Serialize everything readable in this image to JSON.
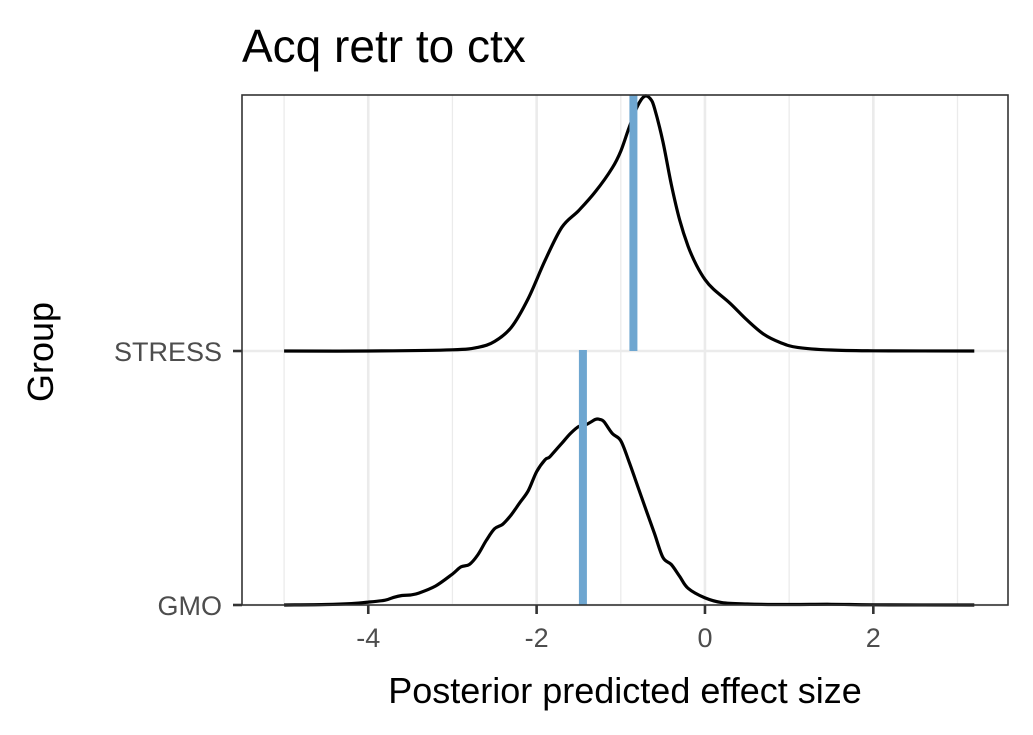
{
  "chart_data": {
    "type": "ridgeline",
    "title": "Acq retr to ctx",
    "xlabel": "Posterior predicted effect size",
    "ylabel": "Group",
    "xlim": [
      -5.5,
      3.6
    ],
    "x_ticks": [
      -4,
      -2,
      0,
      2
    ],
    "x_tick_labels": [
      "-4",
      "-2",
      "0",
      "2"
    ],
    "grid": true,
    "marker_color": "#6ea6d0",
    "line_color": "#000000",
    "groups": [
      {
        "name": "GMO",
        "marker_value": -1.45,
        "density": {
          "x": [
            -5.0,
            -4.5,
            -4.2,
            -4.0,
            -3.8,
            -3.7,
            -3.6,
            -3.5,
            -3.4,
            -3.2,
            -3.0,
            -2.9,
            -2.8,
            -2.7,
            -2.6,
            -2.5,
            -2.4,
            -2.3,
            -2.2,
            -2.1,
            -2.0,
            -1.9,
            -1.85,
            -1.8,
            -1.7,
            -1.6,
            -1.5,
            -1.4,
            -1.3,
            -1.25,
            -1.2,
            -1.1,
            -1.0,
            -0.9,
            -0.8,
            -0.7,
            -0.6,
            -0.5,
            -0.4,
            -0.3,
            -0.2,
            0.0,
            0.2,
            0.5,
            1.0,
            1.5,
            2.0,
            3.2
          ],
          "y": [
            0.0,
            0.002,
            0.006,
            0.012,
            0.02,
            0.032,
            0.04,
            0.042,
            0.05,
            0.08,
            0.13,
            0.16,
            0.17,
            0.21,
            0.27,
            0.32,
            0.34,
            0.38,
            0.43,
            0.48,
            0.56,
            0.61,
            0.62,
            0.64,
            0.68,
            0.72,
            0.75,
            0.76,
            0.78,
            0.78,
            0.77,
            0.72,
            0.69,
            0.6,
            0.5,
            0.4,
            0.3,
            0.2,
            0.17,
            0.12,
            0.07,
            0.03,
            0.01,
            0.004,
            0.002,
            0.003,
            0.001,
            0.0
          ]
        }
      },
      {
        "name": "STRESS",
        "marker_value": -0.85,
        "density": {
          "x": [
            -5.0,
            -4.0,
            -3.0,
            -2.7,
            -2.5,
            -2.3,
            -2.1,
            -1.9,
            -1.7,
            -1.5,
            -1.3,
            -1.1,
            -1.0,
            -0.9,
            -0.8,
            -0.72,
            -0.65,
            -0.6,
            -0.5,
            -0.4,
            -0.3,
            -0.2,
            -0.1,
            0.0,
            0.1,
            0.3,
            0.5,
            0.7,
            0.9,
            1.1,
            1.5,
            2.0,
            3.2
          ],
          "y": [
            0.0,
            0.0,
            0.005,
            0.015,
            0.04,
            0.1,
            0.22,
            0.38,
            0.52,
            0.59,
            0.67,
            0.77,
            0.84,
            0.94,
            1.03,
            1.07,
            1.06,
            1.02,
            0.88,
            0.7,
            0.55,
            0.44,
            0.36,
            0.3,
            0.26,
            0.2,
            0.13,
            0.07,
            0.035,
            0.015,
            0.004,
            0.001,
            0.0
          ]
        }
      }
    ]
  }
}
